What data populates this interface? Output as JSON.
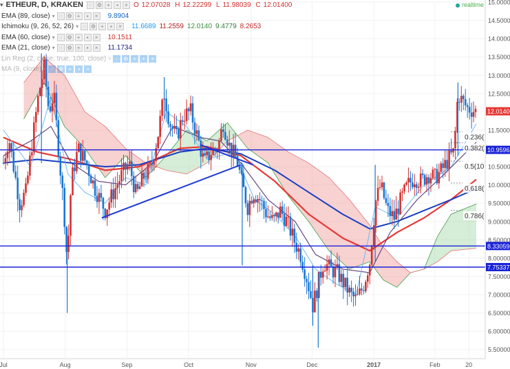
{
  "header": {
    "symbol_label": "ETHEUR, D, KRAKEN",
    "ohlc": {
      "o_label": "O",
      "o": "12.07028",
      "h_label": "H",
      "h": "12.22299",
      "l_label": "L",
      "l": "11.98039",
      "c_label": "C",
      "c": "12.01400"
    },
    "realtime_label": "realtime",
    "colors": {
      "up": "#d32f2f",
      "down": "#1976d2"
    }
  },
  "indicators": [
    {
      "name": "EMA (89, close)",
      "values": [
        "9.8904"
      ],
      "value_colors": [
        "#1565c0"
      ]
    },
    {
      "name": "Ichimoku (9, 26, 52, 26)",
      "values": [
        "11.6689",
        "11.2559",
        "12.0140",
        "9.4779",
        "8.2653"
      ],
      "value_colors": [
        "#2196f3",
        "#b71c1c",
        "#388e3c",
        "#2e7d32",
        "#c62828"
      ]
    },
    {
      "name": "EMA (60, close)",
      "values": [
        "10.1511"
      ],
      "value_colors": [
        "#d32f2f"
      ]
    },
    {
      "name": "EMA (21, close)",
      "values": [
        "11.1734"
      ],
      "value_colors": [
        "#1a237e"
      ]
    },
    {
      "name": "Lin Reg (2, close, true, 100, close)",
      "values": [],
      "value_colors": [],
      "faded": true
    },
    {
      "name": "MA (9, close)",
      "values": [],
      "value_colors": [],
      "faded": true
    }
  ],
  "chart_data": {
    "type": "candlestick",
    "y_axis": {
      "min": 5.25,
      "max": 15.0,
      "ticks": [
        "15.00000",
        "14.50000",
        "14.00000",
        "13.50000",
        "13.00000",
        "12.50000",
        "12.00000",
        "11.50000",
        "11.00000",
        "10.50000",
        "10.00000",
        "9.50000",
        "9.00000",
        "8.50000",
        "8.00000",
        "7.50000",
        "7.00000",
        "6.50000",
        "6.00000",
        "5.50000"
      ]
    },
    "x_axis": {
      "ticks": [
        "Jul",
        "Aug",
        "Sep",
        "Oct",
        "Nov",
        "Dec",
        "2017",
        "Feb",
        "20"
      ],
      "tick_days": [
        0,
        91,
        182,
        273,
        365,
        455,
        546,
        636,
        686
      ],
      "bold_tick": "2017",
      "last_day": 697
    },
    "horizontal_levels": [
      {
        "value": 10.9596,
        "label": "10.9596"
      },
      {
        "value": 8.33059,
        "label": "8.33059"
      },
      {
        "value": 7.75337,
        "label": "7.75337"
      }
    ],
    "last_price": {
      "value": 12.014,
      "label": "12.01400"
    },
    "fib_levels": [
      {
        "value": 11.3,
        "label": "0.236("
      },
      {
        "value": 11.0,
        "label": "0.382("
      },
      {
        "value": 10.5,
        "label": "0.5(10"
      },
      {
        "value": 9.9,
        "label": "0.618("
      },
      {
        "value": 9.15,
        "label": "0.786("
      }
    ],
    "trendlines": [
      {
        "from": {
          "day": 145,
          "price": 9.1
        },
        "to": {
          "day": 350,
          "price": 10.55
        }
      },
      {
        "from": {
          "day": 290,
          "price": 11.1
        },
        "to": {
          "day": 368,
          "price": 10.55
        }
      }
    ],
    "price_path": [
      {
        "day": 0,
        "price": 10.6
      },
      {
        "day": 8,
        "price": 11.3
      },
      {
        "day": 15,
        "price": 10.5
      },
      {
        "day": 24,
        "price": 9.5
      },
      {
        "day": 33,
        "price": 9.8
      },
      {
        "day": 42,
        "price": 11.1
      },
      {
        "day": 52,
        "price": 12.5
      },
      {
        "day": 60,
        "price": 13.2
      },
      {
        "day": 67,
        "price": 12.0
      },
      {
        "day": 74,
        "price": 12.5
      },
      {
        "day": 82,
        "price": 10.8
      },
      {
        "day": 89,
        "price": 9.4
      },
      {
        "day": 94,
        "price": 7.9
      },
      {
        "day": 100,
        "price": 10.1
      },
      {
        "day": 110,
        "price": 11.0
      },
      {
        "day": 122,
        "price": 10.6
      },
      {
        "day": 135,
        "price": 9.9
      },
      {
        "day": 150,
        "price": 9.3
      },
      {
        "day": 162,
        "price": 9.8
      },
      {
        "day": 175,
        "price": 10.3
      },
      {
        "day": 185,
        "price": 10.6
      },
      {
        "day": 196,
        "price": 9.7
      },
      {
        "day": 206,
        "price": 10.2
      },
      {
        "day": 218,
        "price": 10.5
      },
      {
        "day": 228,
        "price": 11.4
      },
      {
        "day": 237,
        "price": 12.5
      },
      {
        "day": 245,
        "price": 11.7
      },
      {
        "day": 255,
        "price": 11.3
      },
      {
        "day": 265,
        "price": 11.9
      },
      {
        "day": 276,
        "price": 12.0
      },
      {
        "day": 286,
        "price": 11.3
      },
      {
        "day": 296,
        "price": 10.6
      },
      {
        "day": 306,
        "price": 10.9
      },
      {
        "day": 316,
        "price": 11.0
      },
      {
        "day": 324,
        "price": 11.7
      },
      {
        "day": 334,
        "price": 11.0
      },
      {
        "day": 344,
        "price": 10.7
      },
      {
        "day": 352,
        "price": 10.0
      },
      {
        "day": 360,
        "price": 9.4
      },
      {
        "day": 368,
        "price": 9.8
      },
      {
        "day": 378,
        "price": 9.6
      },
      {
        "day": 388,
        "price": 9.2
      },
      {
        "day": 398,
        "price": 9.0
      },
      {
        "day": 408,
        "price": 9.3
      },
      {
        "day": 418,
        "price": 9.0
      },
      {
        "day": 428,
        "price": 8.5
      },
      {
        "day": 438,
        "price": 8.1
      },
      {
        "day": 448,
        "price": 7.4
      },
      {
        "day": 456,
        "price": 6.7
      },
      {
        "day": 464,
        "price": 7.3
      },
      {
        "day": 472,
        "price": 7.9
      },
      {
        "day": 482,
        "price": 7.7
      },
      {
        "day": 492,
        "price": 7.6
      },
      {
        "day": 502,
        "price": 7.3
      },
      {
        "day": 512,
        "price": 7.0
      },
      {
        "day": 520,
        "price": 6.85
      },
      {
        "day": 530,
        "price": 7.2
      },
      {
        "day": 540,
        "price": 7.9
      },
      {
        "day": 548,
        "price": 9.5
      },
      {
        "day": 556,
        "price": 10.0
      },
      {
        "day": 566,
        "price": 9.3
      },
      {
        "day": 576,
        "price": 9.1
      },
      {
        "day": 586,
        "price": 9.6
      },
      {
        "day": 596,
        "price": 10.0
      },
      {
        "day": 606,
        "price": 10.2
      },
      {
        "day": 616,
        "price": 10.1
      },
      {
        "day": 626,
        "price": 10.3
      },
      {
        "day": 636,
        "price": 10.2
      },
      {
        "day": 646,
        "price": 10.4
      },
      {
        "day": 656,
        "price": 10.7
      },
      {
        "day": 664,
        "price": 10.9
      },
      {
        "day": 670,
        "price": 12.5
      },
      {
        "day": 676,
        "price": 12.3
      },
      {
        "day": 684,
        "price": 12.1
      },
      {
        "day": 692,
        "price": 12.05
      },
      {
        "day": 697,
        "price": 12.01
      }
    ],
    "spikes": [
      {
        "day": 94,
        "low": 6.5,
        "high": 8.8
      },
      {
        "day": 56,
        "low": 10.6,
        "high": 13.6
      },
      {
        "day": 237,
        "low": 11.8,
        "high": 12.95
      },
      {
        "day": 352,
        "low": 7.8,
        "high": 10.6
      },
      {
        "day": 456,
        "low": 6.15,
        "high": 7.8
      },
      {
        "day": 464,
        "low": 5.55,
        "high": 7.6
      },
      {
        "day": 548,
        "low": 7.9,
        "high": 10.55
      },
      {
        "day": 670,
        "low": 10.8,
        "high": 12.8
      }
    ],
    "lines": [
      {
        "name": "EMA (60, close)",
        "color": "#e53935",
        "width": 2.2,
        "points": [
          [
            0,
            11.3
          ],
          [
            50,
            10.9
          ],
          [
            100,
            10.7
          ],
          [
            150,
            10.4
          ],
          [
            200,
            10.5
          ],
          [
            260,
            11.0
          ],
          [
            300,
            11.05
          ],
          [
            350,
            10.8
          ],
          [
            400,
            10.1
          ],
          [
            450,
            9.2
          ],
          [
            500,
            8.55
          ],
          [
            540,
            8.2
          ],
          [
            580,
            8.7
          ],
          [
            620,
            9.1
          ],
          [
            660,
            9.6
          ],
          [
            697,
            10.15
          ]
        ]
      },
      {
        "name": "EMA (89, close)",
        "color": "#1a3fbf",
        "width": 2.0,
        "points": [
          [
            0,
            10.6
          ],
          [
            50,
            10.7
          ],
          [
            100,
            10.6
          ],
          [
            150,
            10.5
          ],
          [
            200,
            10.55
          ],
          [
            260,
            10.9
          ],
          [
            300,
            11.0
          ],
          [
            350,
            10.85
          ],
          [
            400,
            10.4
          ],
          [
            450,
            9.8
          ],
          [
            500,
            9.2
          ],
          [
            540,
            8.8
          ],
          [
            580,
            9.0
          ],
          [
            620,
            9.3
          ],
          [
            660,
            9.6
          ],
          [
            697,
            9.9
          ]
        ]
      },
      {
        "name": "EMA (21, close)",
        "color": "#5c3b7a",
        "width": 1.1,
        "points": [
          [
            0,
            10.8
          ],
          [
            40,
            11.2
          ],
          [
            70,
            11.6
          ],
          [
            100,
            10.6
          ],
          [
            140,
            10.1
          ],
          [
            180,
            10.0
          ],
          [
            220,
            10.6
          ],
          [
            250,
            11.6
          ],
          [
            290,
            11.3
          ],
          [
            320,
            11.2
          ],
          [
            350,
            10.6
          ],
          [
            390,
            9.6
          ],
          [
            430,
            9.0
          ],
          [
            460,
            8.1
          ],
          [
            500,
            7.7
          ],
          [
            540,
            7.6
          ],
          [
            570,
            8.7
          ],
          [
            610,
            9.6
          ],
          [
            650,
            10.3
          ],
          [
            697,
            11.17
          ]
        ]
      },
      {
        "name": "Ichimoku (9, 26, 52, 26)",
        "color": "#64b5f6",
        "width": 0.9,
        "points": [
          [
            0,
            11.5
          ],
          [
            40,
            10.5
          ],
          [
            70,
            12.4
          ],
          [
            95,
            10.3
          ],
          [
            120,
            9.8
          ],
          [
            150,
            9.5
          ],
          [
            180,
            10.2
          ],
          [
            210,
            10.0
          ],
          [
            240,
            12.0
          ],
          [
            270,
            11.6
          ],
          [
            300,
            10.7
          ],
          [
            340,
            10.9
          ],
          [
            370,
            9.6
          ],
          [
            400,
            9.2
          ],
          [
            430,
            8.6
          ],
          [
            460,
            7.7
          ],
          [
            490,
            7.3
          ],
          [
            520,
            7.0
          ],
          [
            548,
            9.4
          ],
          [
            580,
            9.1
          ],
          [
            620,
            10.0
          ],
          [
            660,
            10.5
          ],
          [
            697,
            11.67
          ]
        ]
      }
    ],
    "cloud": {
      "span_a": [
        [
          30,
          11.8
        ],
        [
          60,
          12.8
        ],
        [
          90,
          11.6
        ],
        [
          120,
          11.0
        ],
        [
          150,
          10.2
        ],
        [
          180,
          10.8
        ],
        [
          210,
          10.2
        ],
        [
          240,
          10.8
        ],
        [
          270,
          11.5
        ],
        [
          300,
          11.2
        ],
        [
          330,
          11.7
        ],
        [
          360,
          11.0
        ],
        [
          390,
          10.6
        ],
        [
          420,
          9.7
        ],
        [
          450,
          9.0
        ],
        [
          480,
          8.2
        ],
        [
          510,
          7.7
        ],
        [
          540,
          7.9
        ],
        [
          560,
          7.4
        ],
        [
          580,
          7.2
        ],
        [
          600,
          7.6
        ],
        [
          620,
          7.7
        ],
        [
          640,
          8.6
        ],
        [
          660,
          9.2
        ],
        [
          697,
          9.48
        ]
      ],
      "span_b": [
        [
          30,
          12.8
        ],
        [
          60,
          13.5
        ],
        [
          90,
          13.0
        ],
        [
          120,
          12.0
        ],
        [
          150,
          11.6
        ],
        [
          180,
          11.0
        ],
        [
          210,
          10.6
        ],
        [
          240,
          10.4
        ],
        [
          270,
          10.3
        ],
        [
          300,
          10.6
        ],
        [
          330,
          11.2
        ],
        [
          360,
          11.5
        ],
        [
          390,
          11.3
        ],
        [
          420,
          10.9
        ],
        [
          450,
          10.6
        ],
        [
          480,
          10.2
        ],
        [
          510,
          9.6
        ],
        [
          540,
          8.9
        ],
        [
          560,
          8.3
        ],
        [
          580,
          7.9
        ],
        [
          600,
          7.6
        ],
        [
          620,
          7.7
        ],
        [
          640,
          7.9
        ],
        [
          660,
          8.2
        ],
        [
          697,
          8.27
        ]
      ],
      "color_a": "#a5d6a7",
      "color_b": "#ef9a9a"
    }
  }
}
